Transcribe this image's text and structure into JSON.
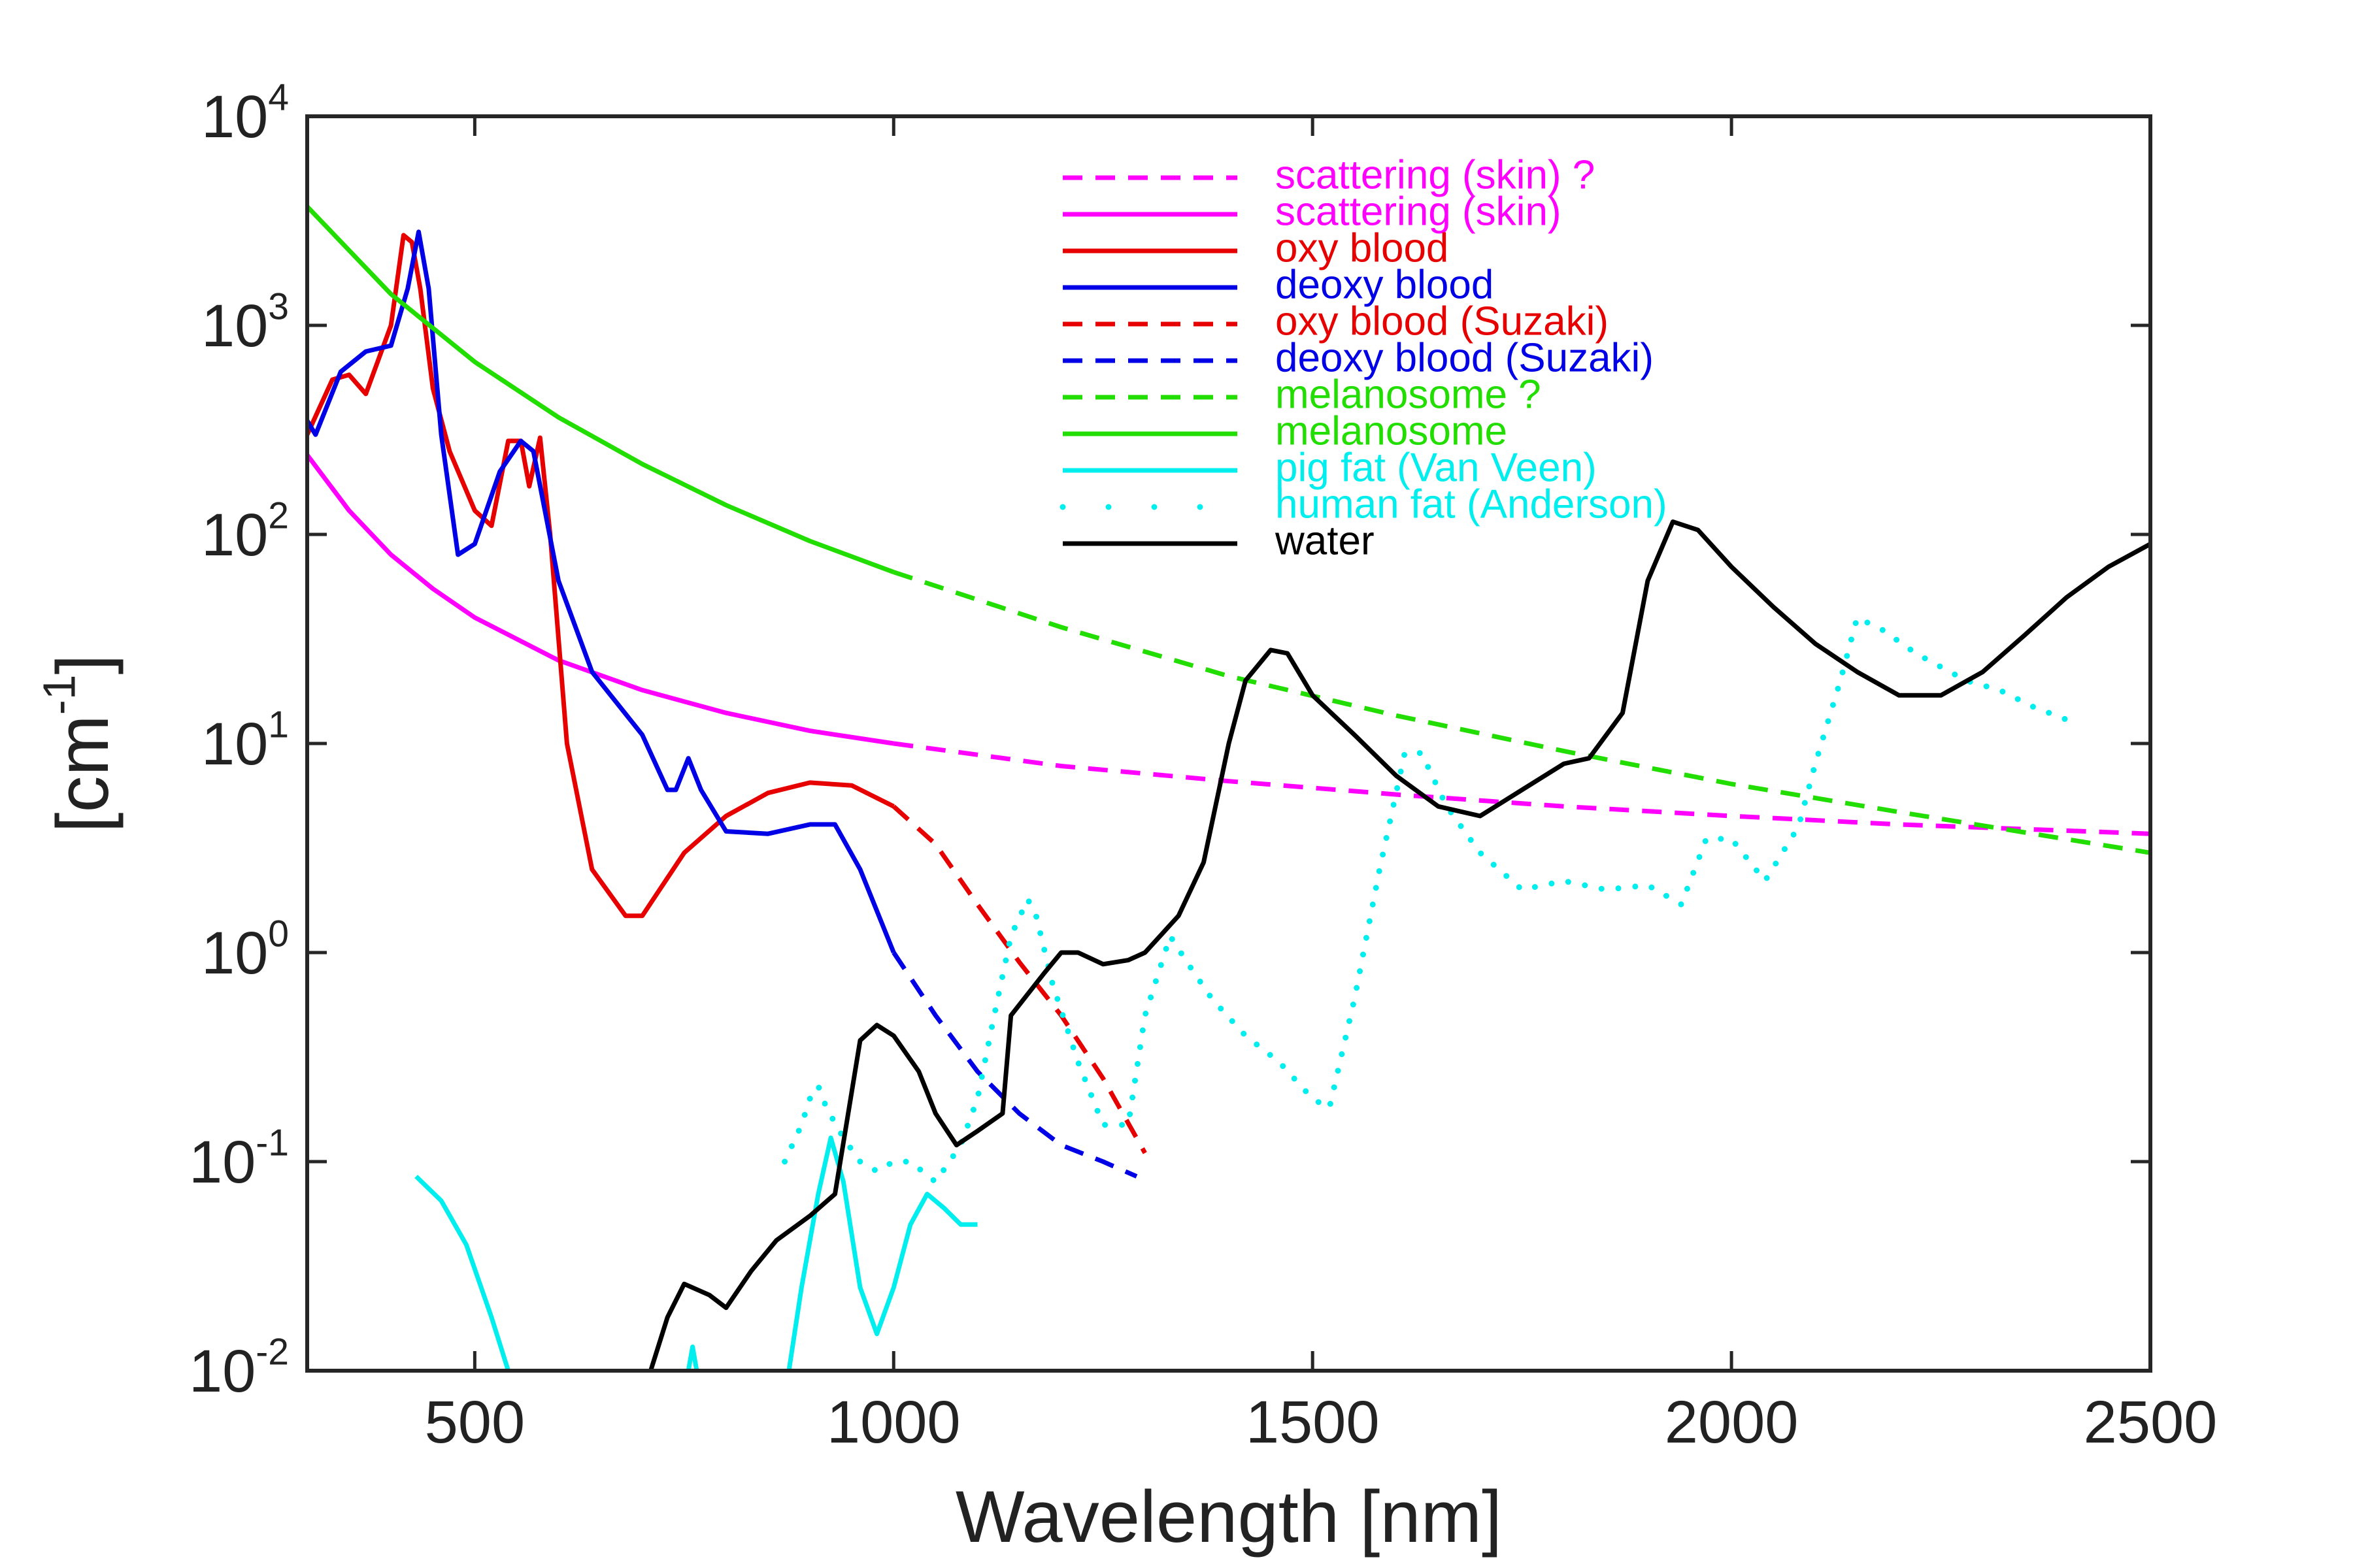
{
  "chart_data": {
    "type": "line",
    "xlabel": "Wavelength [nm]",
    "ylabel": "[cm^{-1}]",
    "xlim": [
      300,
      2500
    ],
    "xticks": [
      500,
      1000,
      1500,
      2000,
      2500
    ],
    "ylim": [
      0.01,
      10000
    ],
    "yticks": [
      {
        "value": 0.01,
        "label": "10^{-2}"
      },
      {
        "value": 0.1,
        "label": "10^{-1}"
      },
      {
        "value": 1,
        "label": "10^{0}"
      },
      {
        "value": 10,
        "label": "10^{1}"
      },
      {
        "value": 100,
        "label": "10^{2}"
      },
      {
        "value": 1000,
        "label": "10^{3}"
      },
      {
        "value": 10000,
        "label": "10^{4}"
      }
    ],
    "yscale": "log",
    "legend": "upper center",
    "series": [
      {
        "name": "scattering (skin) ?",
        "color": "#ff00ff",
        "linestyle": "dashed",
        "x": [
          1000,
          1200,
          1400,
          1600,
          1800,
          2000,
          2200,
          2500
        ],
        "values": [
          10,
          7.8,
          6.6,
          5.7,
          5,
          4.5,
          4.1,
          3.7
        ]
      },
      {
        "name": "scattering (skin)",
        "color": "#ff00ff",
        "linestyle": "solid",
        "x": [
          300,
          350,
          400,
          450,
          500,
          600,
          700,
          800,
          900,
          1000
        ],
        "values": [
          240,
          130,
          80,
          55,
          40,
          25,
          18,
          14,
          11.5,
          10
        ]
      },
      {
        "name": "oxy blood",
        "color": "#e60000",
        "linestyle": "solid",
        "x": [
          300,
          330,
          350,
          370,
          400,
          415,
          425,
          435,
          450,
          470,
          500,
          520,
          540,
          555,
          565,
          578,
          590,
          610,
          640,
          680,
          700,
          750,
          800,
          850,
          900,
          950,
          1000
        ],
        "values": [
          300,
          550,
          580,
          470,
          1000,
          2700,
          2500,
          1500,
          500,
          250,
          130,
          110,
          280,
          280,
          170,
          290,
          100,
          10,
          2.5,
          1.5,
          1.5,
          3,
          4.5,
          5.8,
          6.5,
          6.3,
          5
        ]
      },
      {
        "name": "deoxy blood",
        "color": "#0000e6",
        "linestyle": "solid",
        "x": [
          300,
          310,
          340,
          370,
          400,
          420,
          433,
          445,
          460,
          480,
          500,
          530,
          555,
          570,
          600,
          640,
          700,
          730,
          740,
          755,
          770,
          800,
          850,
          900,
          930,
          960,
          1000
        ],
        "values": [
          350,
          300,
          600,
          750,
          800,
          1500,
          2800,
          1500,
          300,
          80,
          90,
          200,
          280,
          250,
          60,
          22,
          11,
          6,
          6,
          8.5,
          6,
          3.8,
          3.7,
          4.1,
          4.1,
          2.5,
          1
        ]
      },
      {
        "name": "oxy blood (Suzaki)",
        "color": "#e60000",
        "linestyle": "dashed",
        "x": [
          1000,
          1050,
          1100,
          1150,
          1200,
          1250,
          1300
        ],
        "values": [
          5,
          3.3,
          1.7,
          0.9,
          0.5,
          0.25,
          0.11
        ]
      },
      {
        "name": "deoxy blood (Suzaki)",
        "color": "#0000e6",
        "linestyle": "dashed",
        "x": [
          1000,
          1050,
          1100,
          1150,
          1200,
          1250,
          1290
        ],
        "values": [
          1,
          0.5,
          0.27,
          0.17,
          0.12,
          0.1,
          0.085
        ]
      },
      {
        "name": "melanosome ?",
        "color": "#22dd00",
        "linestyle": "dashed",
        "x": [
          1000,
          1200,
          1400,
          1600,
          1800,
          2000,
          2200,
          2500
        ],
        "values": [
          66,
          36,
          21,
          13.6,
          9.2,
          6.4,
          4.7,
          3
        ]
      },
      {
        "name": "melanosome",
        "color": "#22dd00",
        "linestyle": "solid",
        "x": [
          300,
          400,
          500,
          600,
          700,
          800,
          900,
          1000
        ],
        "values": [
          3700,
          1410,
          669,
          363,
          217,
          138,
          93,
          66
        ]
      },
      {
        "name": "pig fat (Van Veen)",
        "color": "#00eeee",
        "linestyle": "solid",
        "x": [
          430,
          460,
          490,
          520,
          540,
          650,
          755,
          760,
          765,
          820,
          875,
          890,
          910,
          925,
          940,
          960,
          980,
          1000,
          1020,
          1040,
          1060,
          1080,
          1100
        ],
        "values": [
          0.085,
          0.065,
          0.04,
          0.018,
          0.01,
          null,
          0.01,
          0.013,
          0.01,
          null,
          0.01,
          0.025,
          0.07,
          0.13,
          0.08,
          0.025,
          0.015,
          0.025,
          0.05,
          0.07,
          0.06,
          0.05,
          0.05
        ]
      },
      {
        "name": "human fat (Anderson)",
        "color": "#00eeee",
        "linestyle": "dotted",
        "x": [
          870,
          890,
          900,
          910,
          920,
          940,
          960,
          980,
          1000,
          1020,
          1050,
          1080,
          1100,
          1120,
          1140,
          1160,
          1170,
          1190,
          1220,
          1250,
          1280,
          1300,
          1330,
          1350,
          1380,
          1420,
          1460,
          1500,
          1520,
          1550,
          1580,
          1610,
          1630,
          1660,
          1700,
          1750,
          1800,
          1850,
          1900,
          1940,
          1970,
          2000,
          2040,
          2080,
          2100,
          2130,
          2150,
          2180,
          2220,
          2280,
          2320,
          2360,
          2400
        ],
        "values": [
          0.1,
          0.15,
          0.2,
          0.23,
          0.18,
          0.13,
          0.1,
          0.09,
          0.1,
          0.1,
          0.08,
          0.12,
          0.2,
          0.5,
          1.2,
          1.8,
          1.5,
          0.7,
          0.3,
          0.15,
          0.15,
          0.5,
          1.2,
          0.9,
          0.6,
          0.4,
          0.3,
          0.2,
          0.18,
          0.6,
          2.5,
          9,
          9,
          5,
          3,
          2,
          2.2,
          2,
          2.1,
          1.7,
          3.5,
          3.5,
          2.2,
          4,
          8,
          20,
          40,
          35,
          27,
          20,
          18,
          15,
          13
        ]
      },
      {
        "name": "water",
        "color": "#000000",
        "linestyle": "solid",
        "x": [
          710,
          730,
          750,
          780,
          800,
          830,
          860,
          900,
          930,
          960,
          980,
          1000,
          1030,
          1050,
          1075,
          1100,
          1130,
          1140,
          1180,
          1200,
          1220,
          1250,
          1280,
          1300,
          1340,
          1370,
          1400,
          1420,
          1450,
          1470,
          1500,
          1550,
          1600,
          1650,
          1700,
          1750,
          1800,
          1830,
          1870,
          1900,
          1930,
          1960,
          2000,
          2050,
          2100,
          2150,
          2200,
          2250,
          2300,
          2350,
          2400,
          2450,
          2500
        ],
        "values": [
          0.01,
          0.018,
          0.026,
          0.023,
          0.02,
          0.03,
          0.042,
          0.055,
          0.07,
          0.38,
          0.45,
          0.4,
          0.27,
          0.17,
          0.12,
          0.14,
          0.17,
          0.5,
          0.8,
          1.0,
          1.0,
          0.88,
          0.92,
          1.0,
          1.5,
          2.7,
          10,
          20,
          28,
          27,
          17,
          11,
          7,
          5,
          4.5,
          6,
          8,
          8.5,
          14,
          60,
          115,
          105,
          70,
          45,
          30,
          22,
          17,
          17,
          22,
          33,
          50,
          70,
          90
        ]
      }
    ]
  }
}
